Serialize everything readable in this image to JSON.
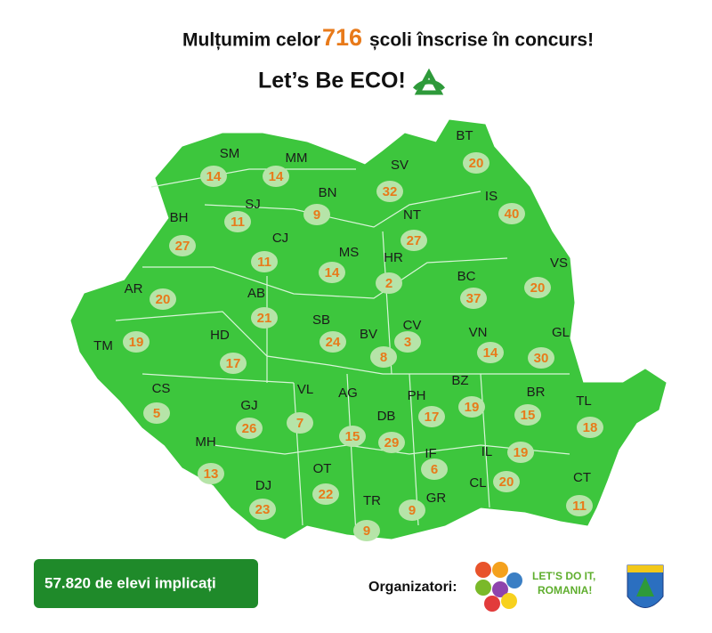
{
  "header": {
    "line1_before": "Mulțumim celor",
    "line1_number": "716",
    "line1_after": "școli înscrise în concurs!",
    "line2": "Let’s Be ECO!"
  },
  "counties": [
    {
      "code": "SM",
      "count": 14
    },
    {
      "code": "MM",
      "count": 14
    },
    {
      "code": "BT",
      "count": 20
    },
    {
      "code": "SV",
      "count": 32
    },
    {
      "code": "BN",
      "count": 9
    },
    {
      "code": "SJ",
      "count": 11
    },
    {
      "code": "IS",
      "count": 40
    },
    {
      "code": "BH",
      "count": 27
    },
    {
      "code": "NT",
      "count": 27
    },
    {
      "code": "CJ",
      "count": 11
    },
    {
      "code": "MS",
      "count": 14
    },
    {
      "code": "HR",
      "count": 2
    },
    {
      "code": "BC",
      "count": 37
    },
    {
      "code": "VS",
      "count": 20
    },
    {
      "code": "AR",
      "count": 20
    },
    {
      "code": "AB",
      "count": 21
    },
    {
      "code": "SB",
      "count": 24
    },
    {
      "code": "CV",
      "count": 3
    },
    {
      "code": "BV",
      "count": 8
    },
    {
      "code": "VN",
      "count": 14
    },
    {
      "code": "GL",
      "count": 30
    },
    {
      "code": "TM",
      "count": 19
    },
    {
      "code": "HD",
      "count": 17
    },
    {
      "code": "CS",
      "count": 5
    },
    {
      "code": "VL",
      "count": 7
    },
    {
      "code": "AG",
      "count": 15
    },
    {
      "code": "PH",
      "count": 17
    },
    {
      "code": "BZ",
      "count": 19
    },
    {
      "code": "BR",
      "count": 15
    },
    {
      "code": "TL",
      "count": 18
    },
    {
      "code": "GJ",
      "count": 26
    },
    {
      "code": "DB",
      "count": 29
    },
    {
      "code": "MH",
      "count": 13
    },
    {
      "code": "IF",
      "count": 6
    },
    {
      "code": "IL",
      "count": 19
    },
    {
      "code": "OT",
      "count": 22
    },
    {
      "code": "CL",
      "count": 20
    },
    {
      "code": "CT",
      "count": 11
    },
    {
      "code": "DJ",
      "count": 23
    },
    {
      "code": "TR",
      "count": 9
    },
    {
      "code": "GR",
      "count": 9
    }
  ],
  "footer": {
    "students": "57.820 de elevi implicați",
    "organizers_label": "Organizatori:",
    "partner_line1": "LET’S DO IT,",
    "partner_line2": "ROMANIA!"
  }
}
